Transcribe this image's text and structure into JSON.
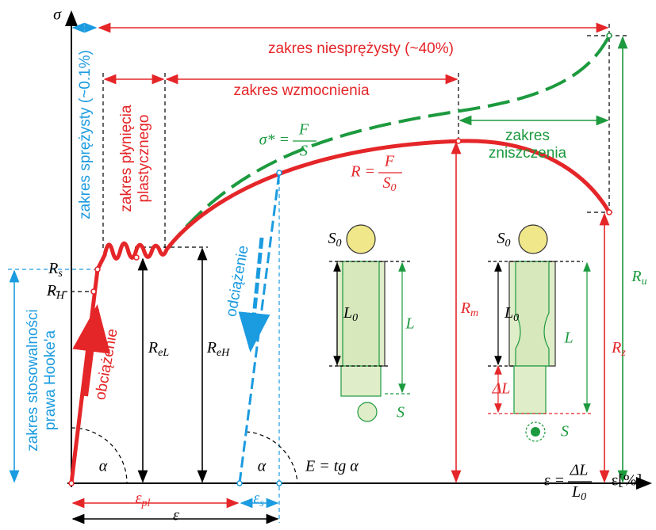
{
  "axes": {
    "y_symbol": "σ",
    "x_formula": {
      "lhs": "ε =",
      "num": "ΔL",
      "den": {
        "main": "L",
        "sub": "0"
      }
    },
    "x_unit": "ε[%]"
  },
  "ranges": {
    "elastic": "zakres sprężysty (~0.1%)",
    "inelastic": "zakres niesprężysty (~40%)",
    "yield": [
      "zakres płynięcia",
      "plastycznego"
    ],
    "hardening": "zakres wzmocnienia",
    "failure": [
      "zakres",
      "zniszczenia"
    ],
    "hooke": [
      "zakres stosowalności",
      "prawa Hooke'a"
    ]
  },
  "curves": {
    "true_stress": {
      "lhs": "σ* =",
      "num": "F",
      "den": "S"
    },
    "eng_stress": {
      "lhs": "R =",
      "num": "F",
      "den": {
        "main": "S",
        "sub": "0"
      }
    },
    "loading": "obciążenie",
    "unloading": "odciążenie"
  },
  "stress_labels": {
    "Rs": {
      "main": "R",
      "sub": "s"
    },
    "RH": {
      "main": "R",
      "sub": "H"
    },
    "ReL": {
      "main": "R",
      "sub": "eL"
    },
    "ReH": {
      "main": "R",
      "sub": "eH"
    },
    "Rm": {
      "main": "R",
      "sub": "m"
    },
    "Rz": {
      "main": "R",
      "sub": "z"
    },
    "Ru": {
      "main": "R",
      "sub": "u"
    }
  },
  "angles": {
    "alpha1": "α",
    "alpha2": "α",
    "modulus": "E = tg α"
  },
  "strain_labels": {
    "eps_pl": {
      "main": "ε",
      "sub": "pl"
    },
    "eps_s": {
      "main": "ε",
      "sub": "s"
    },
    "eps": "ε"
  },
  "specimen_initial": {
    "area": {
      "main": "S",
      "sub": "0"
    },
    "length": {
      "main": "L",
      "sub": "0"
    },
    "current_length": "L",
    "current_area": "S"
  },
  "specimen_necked": {
    "area": {
      "main": "S",
      "sub": "0"
    },
    "length": {
      "main": "L",
      "sub": "0"
    },
    "current_length": "L",
    "elongation": "ΔL",
    "current_area": "S"
  }
}
